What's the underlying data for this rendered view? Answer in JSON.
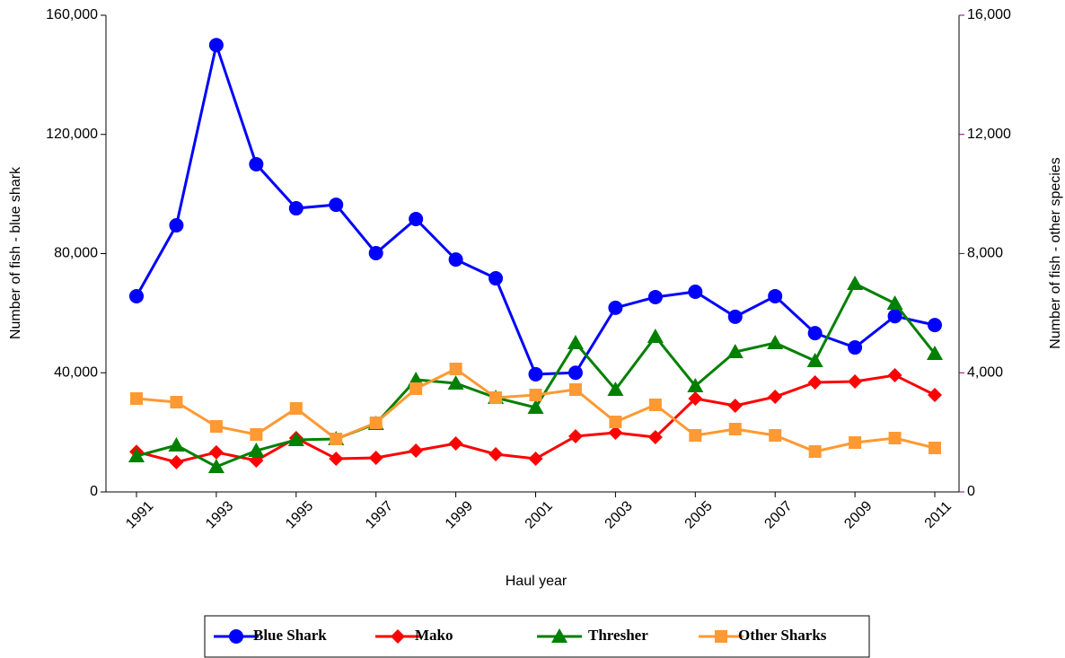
{
  "chart_data": {
    "type": "line",
    "x_label": "Haul year",
    "y_label": "Number of fish - blue shark",
    "y2_label": "Number of fish - other species",
    "x": [
      1991,
      1992,
      1993,
      1994,
      1995,
      1996,
      1997,
      1998,
      1999,
      2000,
      2001,
      2002,
      2003,
      2004,
      2005,
      2006,
      2007,
      2008,
      2009,
      2010,
      2011
    ],
    "xlim": [
      1991,
      2011
    ],
    "xticks": [
      1991,
      1993,
      1995,
      1997,
      1999,
      2001,
      2003,
      2005,
      2007,
      2009,
      2011
    ],
    "ylim": [
      0,
      160000
    ],
    "yticks": [
      0,
      {
        "value": 40000,
        "label": "40,000"
      },
      {
        "value": 80000,
        "label": "80,000"
      },
      {
        "value": 120000,
        "label": "120,000"
      },
      {
        "value": 160000,
        "label": "160,000"
      }
    ],
    "y2lim": [
      0,
      16000
    ],
    "y2ticks": [
      0,
      {
        "value": 4000,
        "label": "4,000"
      },
      {
        "value": 8000,
        "label": "8,000"
      },
      {
        "value": 12000,
        "label": "12,000"
      },
      {
        "value": 16000,
        "label": "16,000"
      }
    ],
    "legend": "bottom",
    "series": [
      {
        "name": "Blue Shark",
        "color": "#0000ff",
        "marker": "circle",
        "values": [
          65700,
          89500,
          150000,
          110000,
          95200,
          96400,
          80150,
          91600,
          78000,
          71700,
          39500,
          40000,
          61800,
          65400,
          67200,
          58800,
          65700,
          53300,
          48500,
          59000,
          56000
        ]
      },
      {
        "name": "Mako",
        "color": "#ff0000",
        "marker": "diamond",
        "axis": "y2",
        "values": [
          1350,
          1000,
          1330,
          1055,
          1808,
          1115,
          1145,
          1386,
          1627,
          1266,
          1115,
          1868,
          1989,
          1838,
          3134,
          2893,
          3194,
          3676,
          3706,
          3917,
          3254
        ]
      },
      {
        "name": "Thresher",
        "color": "#008000",
        "marker": "triangle",
        "axis": "y2",
        "values": [
          1205,
          1567,
          844,
          1386,
          1748,
          1778,
          2290,
          3767,
          3646,
          3164,
          2832,
          5002,
          3435,
          5213,
          3556,
          4700,
          5002,
          4399,
          6991,
          6328,
          4640
        ]
      },
      {
        "name": "Other Sharks",
        "color": "#ff9933",
        "marker": "square",
        "axis": "y2",
        "values": [
          3134,
          3013,
          2200,
          1928,
          2802,
          1778,
          2320,
          3465,
          4128,
          3164,
          3254,
          3435,
          2350,
          2923,
          1898,
          2109,
          1898,
          1356,
          1657,
          1808,
          1476
        ]
      }
    ]
  }
}
